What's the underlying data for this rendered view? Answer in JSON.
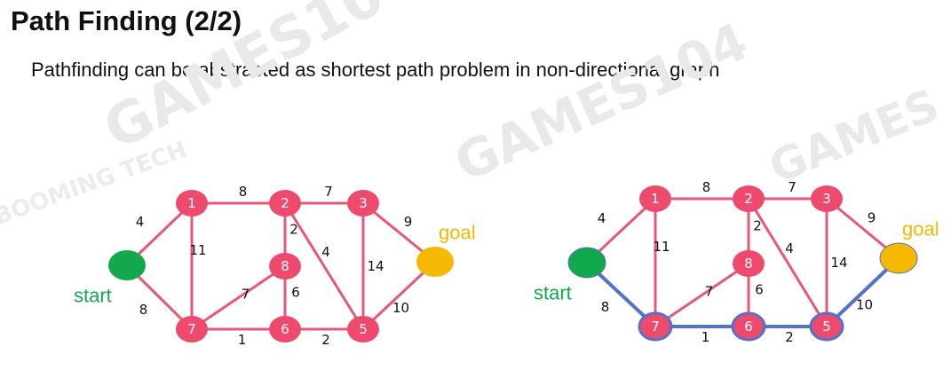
{
  "title": "Path Finding (2/2)",
  "subtitle": "Pathfinding can be abstracted as shortest path problem in non-directional graph",
  "watermarks": [
    "GAMES104",
    "GAMES104",
    "GAMES",
    "BOOMING TECH"
  ],
  "colors": {
    "node": "#ed4a6e",
    "edge": "#e8567a",
    "start": "#12a84c",
    "goal": "#f6b800",
    "path": "#5572c8"
  },
  "labels": {
    "start": "start",
    "goal": "goal"
  },
  "nodes": [
    "1",
    "2",
    "3",
    "5",
    "6",
    "7",
    "8"
  ],
  "edges": [
    {
      "from": "start",
      "to": "1",
      "weight": "4"
    },
    {
      "from": "start",
      "to": "7",
      "weight": "8"
    },
    {
      "from": "1",
      "to": "2",
      "weight": "8"
    },
    {
      "from": "1",
      "to": "7",
      "weight": "11"
    },
    {
      "from": "2",
      "to": "3",
      "weight": "7"
    },
    {
      "from": "2",
      "to": "8",
      "weight": "2"
    },
    {
      "from": "2",
      "to": "5",
      "weight": "4"
    },
    {
      "from": "3",
      "to": "5",
      "weight": "14"
    },
    {
      "from": "3",
      "to": "goal",
      "weight": "9"
    },
    {
      "from": "8",
      "to": "7",
      "weight": "7"
    },
    {
      "from": "8",
      "to": "6",
      "weight": "6"
    },
    {
      "from": "7",
      "to": "6",
      "weight": "1"
    },
    {
      "from": "6",
      "to": "5",
      "weight": "2"
    },
    {
      "from": "5",
      "to": "goal",
      "weight": "10"
    }
  ],
  "shortest_path": [
    "start",
    "7",
    "6",
    "5",
    "goal"
  ]
}
